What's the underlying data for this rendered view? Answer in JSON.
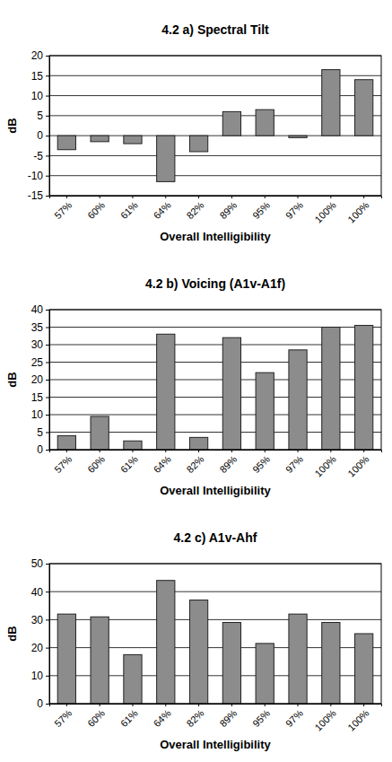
{
  "chart_data": [
    {
      "type": "bar",
      "title": "4.2 a) Spectral Tilt",
      "x_label": "Overall Intelligibility",
      "y_label": "dB",
      "categories": [
        "57%",
        "60%",
        "61%",
        "64%",
        "82%",
        "89%",
        "95%",
        "97%",
        "100%",
        "100%"
      ],
      "values": [
        -3.5,
        -1.5,
        -2,
        -11.5,
        -4,
        6,
        6.5,
        -0.5,
        16.5,
        14
      ],
      "color": "#8c8c8c",
      "ylim": [
        -15,
        20
      ],
      "yticks": [
        -15,
        -10,
        -5,
        0,
        5,
        10,
        15,
        20
      ],
      "grid": true
    },
    {
      "type": "bar",
      "title": "4.2 b) Voicing (A1v-A1f)",
      "x_label": "Overall Intelligibility",
      "y_label": "dB",
      "categories": [
        "57%",
        "60%",
        "61%",
        "64%",
        "82%",
        "89%",
        "95%",
        "97%",
        "100%",
        "100%"
      ],
      "values": [
        4,
        9.5,
        2.5,
        33,
        3.5,
        32,
        22,
        28.5,
        35,
        35.5
      ],
      "color": "#8c8c8c",
      "ylim": [
        0,
        40
      ],
      "yticks": [
        0,
        5,
        10,
        15,
        20,
        25,
        30,
        35,
        40
      ],
      "grid": true
    },
    {
      "type": "bar",
      "title": "4.2 c) A1v-Ahf",
      "x_label": "Overall Intelligibility",
      "y_label": "dB",
      "categories": [
        "57%",
        "60%",
        "61%",
        "64%",
        "82%",
        "89%",
        "95%",
        "97%",
        "100%",
        "100%"
      ],
      "values": [
        32,
        31,
        17.5,
        44,
        37,
        29,
        21.5,
        32,
        29,
        25
      ],
      "color": "#8c8c8c",
      "ylim": [
        0,
        50
      ],
      "yticks": [
        0,
        10,
        20,
        30,
        40,
        50
      ],
      "grid": true
    }
  ]
}
